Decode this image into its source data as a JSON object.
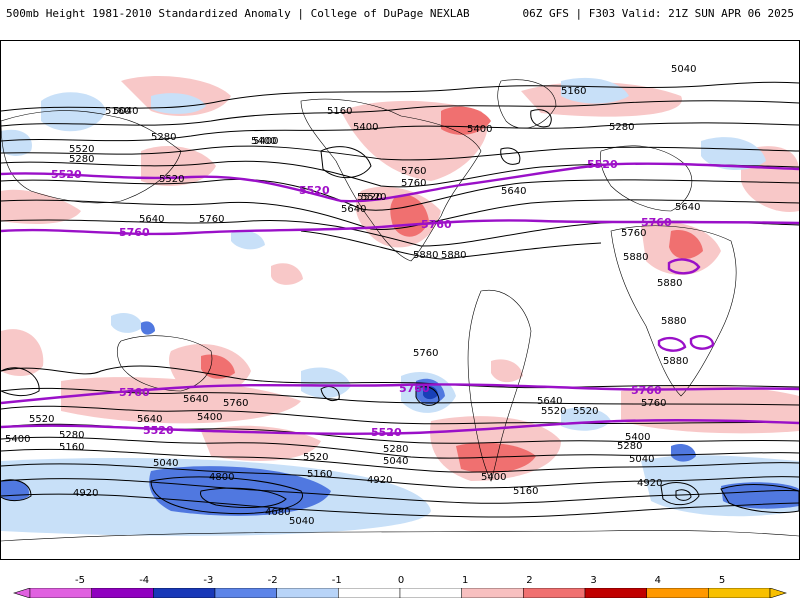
{
  "header": {
    "left_title": "500mb Height 1981-2010 Standardized Anomaly | College of DuPage NEXLAB",
    "right_title": "06Z GFS | F303 Valid: 21Z SUN APR 06 2025"
  },
  "colors": {
    "pos1": "#f8c8c8",
    "pos2": "#f07070",
    "neg1": "#c8e0f8",
    "neg2": "#5078e0",
    "neg3": "#1840b8",
    "contour": "#000000",
    "highlight_contour": "#9a10c8"
  },
  "colorbar": {
    "ticks": [
      "-5",
      "-4",
      "-3",
      "-2",
      "-1",
      "0",
      "1",
      "2",
      "3",
      "4",
      "5"
    ],
    "colors": [
      "#e060e0",
      "#9000c0",
      "#1838b8",
      "#5c84e8",
      "#b8d4f8",
      "#ffffff",
      "#ffffff",
      "#f8c0c0",
      "#f07070",
      "#c00000",
      "#ff9800",
      "#f8c000"
    ]
  },
  "contour_labels": [
    "5040",
    "5160",
    "5280",
    "5400",
    "5520",
    "5640",
    "5760",
    "5880",
    "5040",
    "5160",
    "5280",
    "5400",
    "5520",
    "5640",
    "5760",
    "5520",
    "5640",
    "5760",
    "5880",
    "5400",
    "5520",
    "5640",
    "5760",
    "5880",
    "5880",
    "5880",
    "5640",
    "5760",
    "5400",
    "5520",
    "5640",
    "5760",
    "5400",
    "5280",
    "5160",
    "5040",
    "4920",
    "4800",
    "4680",
    "5520",
    "5400",
    "5280",
    "5160",
    "5040",
    "4920",
    "5520",
    "5400",
    "5280",
    "5160",
    "5040",
    "4920",
    "5040",
    "5160",
    "5280",
    "5400",
    "5520",
    "5640",
    "5760",
    "5880"
  ],
  "highlight_labels": [
    "5520",
    "5760",
    "5520",
    "5760",
    "5520",
    "5760",
    "5760",
    "5760",
    "5520",
    "5520",
    "5760"
  ]
}
